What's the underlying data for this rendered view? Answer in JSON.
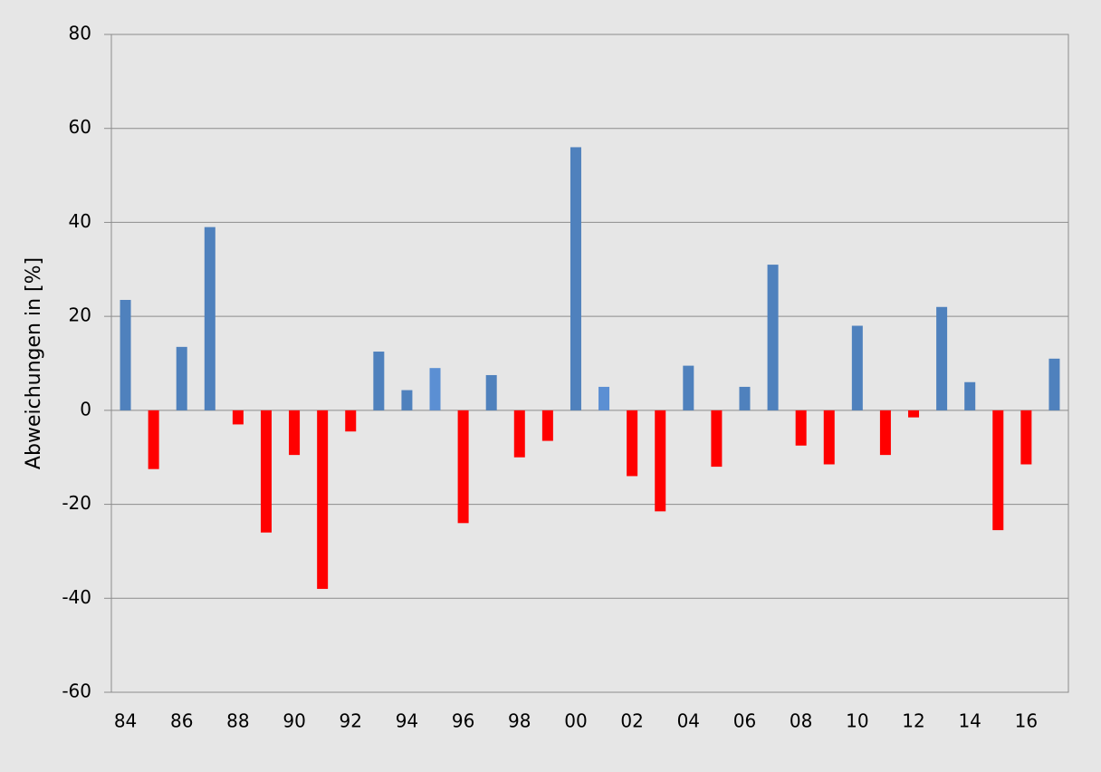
{
  "chart_data": {
    "type": "bar",
    "y_label": "Abweichungen in [%]",
    "categories": [
      "84",
      null,
      "86",
      null,
      "88",
      null,
      "90",
      null,
      "92",
      null,
      "94",
      null,
      "96",
      null,
      "98",
      null,
      "00",
      null,
      "02",
      null,
      "04",
      null,
      "06",
      null,
      "08",
      null,
      "10",
      null,
      "12",
      null,
      "14",
      null,
      "16",
      null
    ],
    "values": [
      23.5,
      -12.5,
      13.5,
      39,
      -3,
      -26,
      -9.5,
      -38,
      -4.5,
      12.5,
      4.3,
      9,
      -24,
      7.5,
      -10,
      -6.5,
      56,
      5,
      -14,
      -21.5,
      9.5,
      -12,
      5,
      31,
      -7.5,
      -11.5,
      18,
      -9.5,
      -1.5,
      22,
      6,
      -25.5,
      -11.5,
      11
    ],
    "colors": [
      "#4f81bd",
      "#ff0000",
      "#4f81bd",
      "#4f81bd",
      "#ff0000",
      "#ff0000",
      "#ff0000",
      "#ff0000",
      "#ff0000",
      "#4f81bd",
      "#4f81bd",
      "#5b8fd3",
      "#ff0000",
      "#4f81bd",
      "#ff0000",
      "#ff0000",
      "#4f81bd",
      "#5b8fd3",
      "#ff0000",
      "#ff0000",
      "#4f81bd",
      "#ff0000",
      "#4f81bd",
      "#4f81bd",
      "#ff0000",
      "#ff0000",
      "#4f81bd",
      "#ff0000",
      "#ff0000",
      "#4f81bd",
      "#4f81bd",
      "#ff0000",
      "#ff0000",
      "#4f81bd"
    ],
    "ylim": [
      -60,
      80
    ],
    "yticks": [
      -60,
      -40,
      -20,
      0,
      20,
      40,
      60,
      80
    ],
    "grid": true
  }
}
